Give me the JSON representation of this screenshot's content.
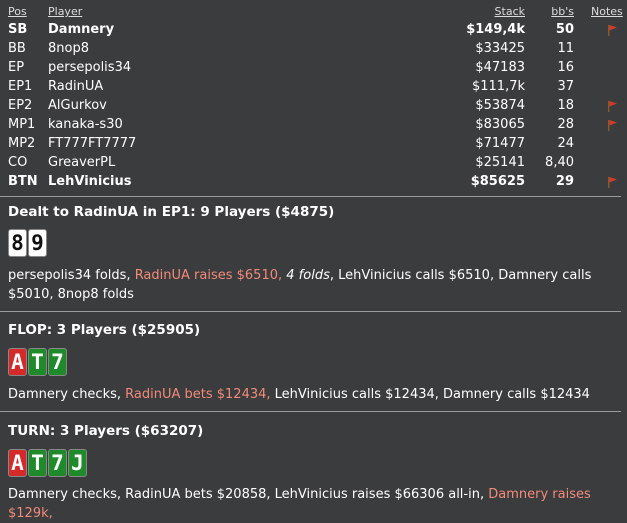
{
  "header": {
    "pos": "Pos",
    "player": "Player",
    "stack": "Stack",
    "bbs": "bb's",
    "notes": "Notes"
  },
  "players": [
    {
      "pos": "SB",
      "name": "Damnery",
      "stack": "$149,4k",
      "bbs": "50",
      "flag": true,
      "bold": true
    },
    {
      "pos": "BB",
      "name": "8nop8",
      "stack": "$33425",
      "bbs": "11",
      "flag": false,
      "bold": false
    },
    {
      "pos": "EP",
      "name": "persepolis34",
      "stack": "$47183",
      "bbs": "16",
      "flag": false,
      "bold": false
    },
    {
      "pos": "EP1",
      "name": "RadinUA",
      "stack": "$111,7k",
      "bbs": "37",
      "flag": false,
      "bold": false
    },
    {
      "pos": "EP2",
      "name": "AlGurkov",
      "stack": "$53874",
      "bbs": "18",
      "flag": true,
      "bold": false
    },
    {
      "pos": "MP1",
      "name": "kanaka-s30",
      "stack": "$83065",
      "bbs": "28",
      "flag": true,
      "bold": false
    },
    {
      "pos": "MP2",
      "name": "FT777FT7777",
      "stack": "$71477",
      "bbs": "24",
      "flag": false,
      "bold": false
    },
    {
      "pos": "CO",
      "name": "GreaverPL",
      "stack": "$25141",
      "bbs": "8,40",
      "flag": false,
      "bold": false
    },
    {
      "pos": "BTN",
      "name": "LehVinicius",
      "stack": "$85625",
      "bbs": "29",
      "flag": true,
      "bold": true
    }
  ],
  "flag_color": "#d13b2b",
  "preflop": {
    "title": "Dealt to RadinUA in EP1: 9 Players ($4875)",
    "cards": [
      {
        "rank": "8",
        "style": "white"
      },
      {
        "rank": "9",
        "style": "white"
      }
    ],
    "a1": "persepolis34 folds, ",
    "a2": "RadinUA raises $6510,",
    "a3": " ",
    "a4": "4 folds",
    "a5": ", LehVinicius calls $6510, Damnery calls $5010, 8nop8 folds"
  },
  "flop": {
    "title": "FLOP: 3 Players ($25905)",
    "cards": [
      {
        "rank": "A",
        "style": "red"
      },
      {
        "rank": "T",
        "style": "green"
      },
      {
        "rank": "7",
        "style": "green"
      }
    ],
    "a1": "Damnery checks, ",
    "a2": "RadinUA bets $12434,",
    "a3": " LehVinicius calls $12434, Damnery calls $12434"
  },
  "turn": {
    "title": "TURN: 3 Players ($63207)",
    "cards": [
      {
        "rank": "A",
        "style": "red"
      },
      {
        "rank": "T",
        "style": "green"
      },
      {
        "rank": "7",
        "style": "green"
      },
      {
        "rank": "J",
        "style": "green"
      }
    ],
    "a1": "Damnery checks, RadinUA bets $20858, LehVinicius raises $66306 all-in, ",
    "a2": "Damnery raises $129k,"
  }
}
